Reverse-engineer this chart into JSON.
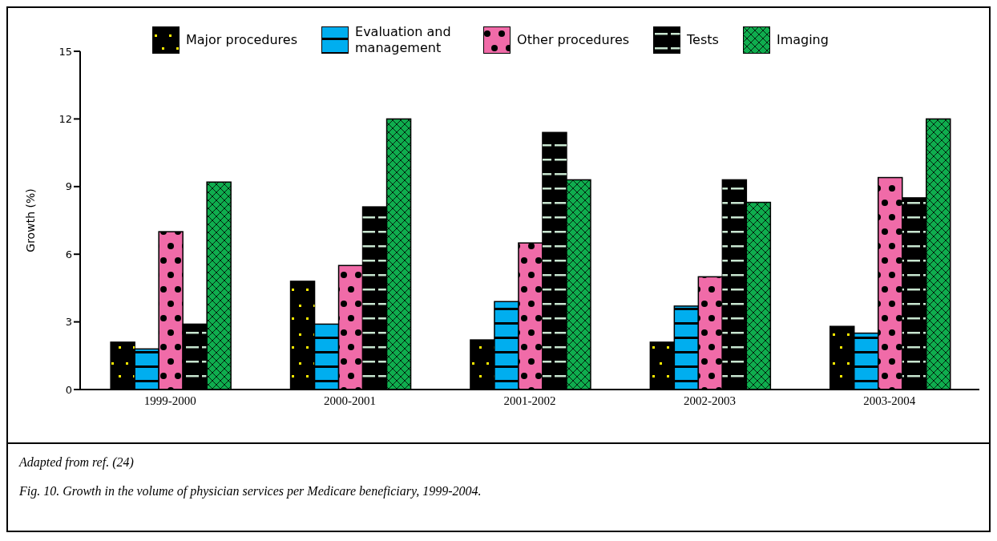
{
  "chart_data": {
    "type": "bar",
    "ylabel": "Growth (%)",
    "categories": [
      "1999-2000",
      "2000-2001",
      "2001-2002",
      "2002-2003",
      "2003-2004"
    ],
    "series": [
      {
        "name": "Major procedures",
        "color": "#000000",
        "values": [
          2.1,
          4.8,
          2.2,
          2.1,
          2.8
        ]
      },
      {
        "name": "Evaluation and management",
        "color": "#00aeef",
        "values": [
          1.8,
          2.9,
          3.9,
          3.7,
          2.5
        ]
      },
      {
        "name": "Other procedures",
        "color": "#f06ba8",
        "values": [
          7.0,
          5.5,
          6.5,
          5.0,
          9.4
        ]
      },
      {
        "name": "Tests",
        "color": "#000000",
        "values": [
          2.9,
          8.1,
          11.4,
          9.3,
          8.5
        ]
      },
      {
        "name": "Imaging",
        "color": "#0fad4e",
        "values": [
          9.2,
          12.0,
          9.3,
          8.3,
          12.0
        ]
      }
    ],
    "ylim": [
      0,
      15
    ],
    "yticks": [
      0,
      3,
      6,
      9,
      12,
      15
    ],
    "grid": false,
    "legend": "top",
    "annotations": [
      "Adapted from ref. (24)",
      "Fig. 10. Growth in the volume of physician services per Medicare beneficiary, 1999-2004."
    ]
  }
}
